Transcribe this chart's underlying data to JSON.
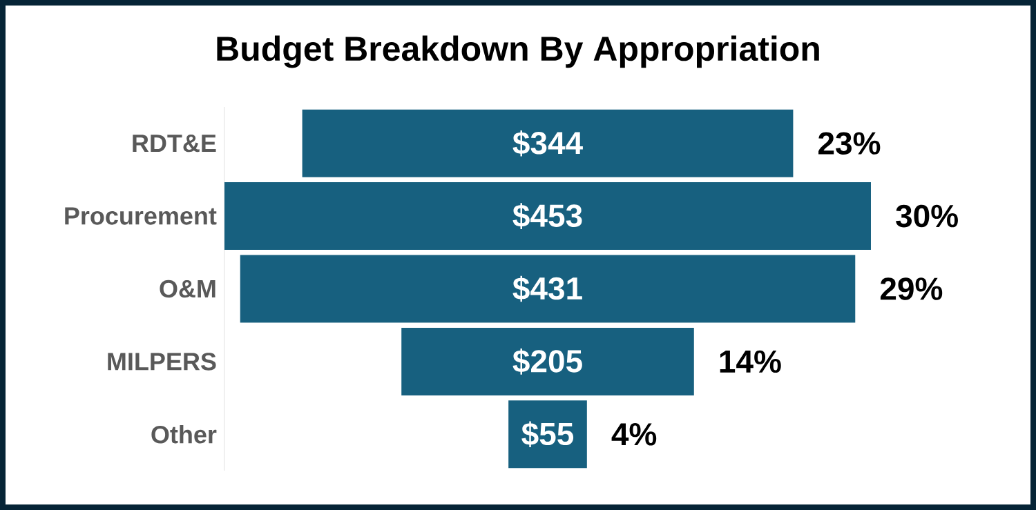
{
  "chart_data": {
    "type": "other",
    "title": "Budget Breakdown By Appropriation",
    "categories": [
      "RDT&E",
      "Procurement",
      "O&M",
      "MILPERS",
      "Other"
    ],
    "values": [
      344,
      453,
      431,
      205,
      55
    ],
    "value_labels": [
      "$344",
      "$453",
      "$431",
      "$205",
      "$55"
    ],
    "color": "#17607f",
    "annotations": [
      "23%",
      "30%",
      "29%",
      "14%",
      "4%"
    ]
  }
}
